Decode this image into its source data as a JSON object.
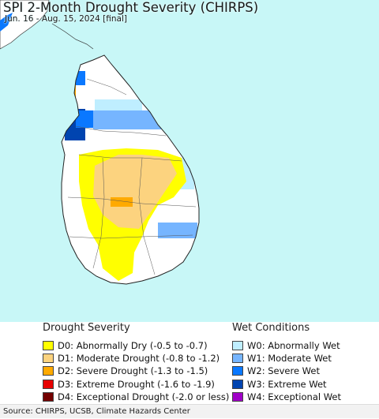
{
  "header": {
    "title": "SPI 2-Month Drought Severity (CHIRPS)",
    "subtitle": "Jun. 16 - Aug. 15, 2024 [final]"
  },
  "map": {
    "ocean_color": "#c8f7f7",
    "land_color": "#ffffff",
    "region": "Sri Lanka"
  },
  "legend": {
    "drought": {
      "title": "Drought Severity",
      "items": [
        {
          "label": "D0: Abnormally Dry (-0.5 to -0.7)",
          "color": "#ffff00"
        },
        {
          "label": "D1: Moderate Drought (-0.8 to -1.2)",
          "color": "#fcd37f"
        },
        {
          "label": "D2: Severe Drought (-1.3 to -1.5)",
          "color": "#ffaa00"
        },
        {
          "label": "D3: Extreme Drought (-1.6 to -1.9)",
          "color": "#e60000"
        },
        {
          "label": "D4: Exceptional Drought (-2.0 or less)",
          "color": "#730000"
        }
      ]
    },
    "wet": {
      "title": "Wet Conditions",
      "items": [
        {
          "label": "W0: Abnormally Wet",
          "color": "#bfeeff"
        },
        {
          "label": "W1: Moderate Wet",
          "color": "#76b5ff"
        },
        {
          "label": "W2: Severe Wet",
          "color": "#0a78ff"
        },
        {
          "label": "W3: Extreme Wet",
          "color": "#0044b0"
        },
        {
          "label": "W4: Exceptional Wet",
          "color": "#a000c8"
        }
      ]
    }
  },
  "footer": {
    "source": "Source: CHIRPS, UCSB, Climate Hazards Center"
  }
}
